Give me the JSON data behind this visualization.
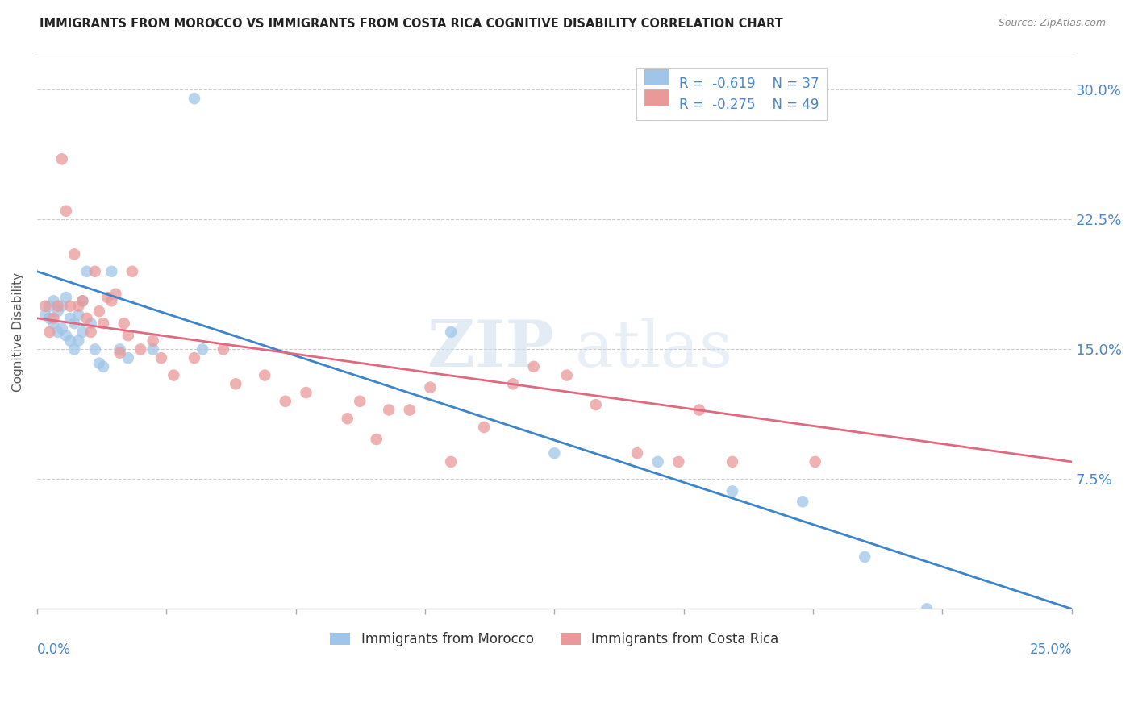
{
  "title": "IMMIGRANTS FROM MOROCCO VS IMMIGRANTS FROM COSTA RICA COGNITIVE DISABILITY CORRELATION CHART",
  "source": "Source: ZipAtlas.com",
  "ylabel": "Cognitive Disability",
  "ytick_labels": [
    "30.0%",
    "22.5%",
    "15.0%",
    "7.5%"
  ],
  "ytick_values": [
    0.3,
    0.225,
    0.15,
    0.075
  ],
  "xmin": 0.0,
  "xmax": 0.25,
  "ymin": 0.0,
  "ymax": 0.32,
  "color_morocco": "#9fc5e8",
  "color_costa_rica": "#ea9999",
  "color_morocco_line": "#3d85c8",
  "color_costa_rica_line": "#e06880",
  "color_blue": "#4a86c8",
  "morocco_line_x0": 0.0,
  "morocco_line_y0": 0.195,
  "morocco_line_x1": 0.25,
  "morocco_line_y1": 0.0,
  "costa_rica_line_x0": 0.0,
  "costa_rica_line_y0": 0.168,
  "costa_rica_line_x1": 0.25,
  "costa_rica_line_y1": 0.085,
  "morocco_x": [
    0.002,
    0.003,
    0.003,
    0.004,
    0.004,
    0.005,
    0.005,
    0.006,
    0.006,
    0.007,
    0.007,
    0.008,
    0.008,
    0.009,
    0.009,
    0.01,
    0.01,
    0.011,
    0.011,
    0.012,
    0.013,
    0.014,
    0.015,
    0.016,
    0.018,
    0.02,
    0.022,
    0.028,
    0.038,
    0.04,
    0.1,
    0.125,
    0.15,
    0.168,
    0.185,
    0.2,
    0.215
  ],
  "morocco_y": [
    0.17,
    0.175,
    0.168,
    0.178,
    0.165,
    0.172,
    0.16,
    0.175,
    0.162,
    0.18,
    0.158,
    0.168,
    0.155,
    0.165,
    0.15,
    0.17,
    0.155,
    0.178,
    0.16,
    0.195,
    0.165,
    0.15,
    0.142,
    0.14,
    0.195,
    0.15,
    0.145,
    0.15,
    0.295,
    0.15,
    0.16,
    0.09,
    0.085,
    0.068,
    0.062,
    0.03,
    0.0
  ],
  "costa_rica_x": [
    0.002,
    0.003,
    0.004,
    0.005,
    0.006,
    0.007,
    0.008,
    0.009,
    0.01,
    0.011,
    0.012,
    0.013,
    0.014,
    0.015,
    0.016,
    0.017,
    0.018,
    0.019,
    0.02,
    0.021,
    0.022,
    0.023,
    0.025,
    0.028,
    0.03,
    0.033,
    0.038,
    0.045,
    0.048,
    0.055,
    0.06,
    0.065,
    0.075,
    0.078,
    0.082,
    0.085,
    0.09,
    0.095,
    0.1,
    0.108,
    0.115,
    0.12,
    0.128,
    0.135,
    0.145,
    0.155,
    0.16,
    0.168,
    0.188
  ],
  "costa_rica_y": [
    0.175,
    0.16,
    0.168,
    0.175,
    0.26,
    0.23,
    0.175,
    0.205,
    0.175,
    0.178,
    0.168,
    0.16,
    0.195,
    0.172,
    0.165,
    0.18,
    0.178,
    0.182,
    0.148,
    0.165,
    0.158,
    0.195,
    0.15,
    0.155,
    0.145,
    0.135,
    0.145,
    0.15,
    0.13,
    0.135,
    0.12,
    0.125,
    0.11,
    0.12,
    0.098,
    0.115,
    0.115,
    0.128,
    0.085,
    0.105,
    0.13,
    0.14,
    0.135,
    0.118,
    0.09,
    0.085,
    0.115,
    0.085,
    0.085
  ]
}
